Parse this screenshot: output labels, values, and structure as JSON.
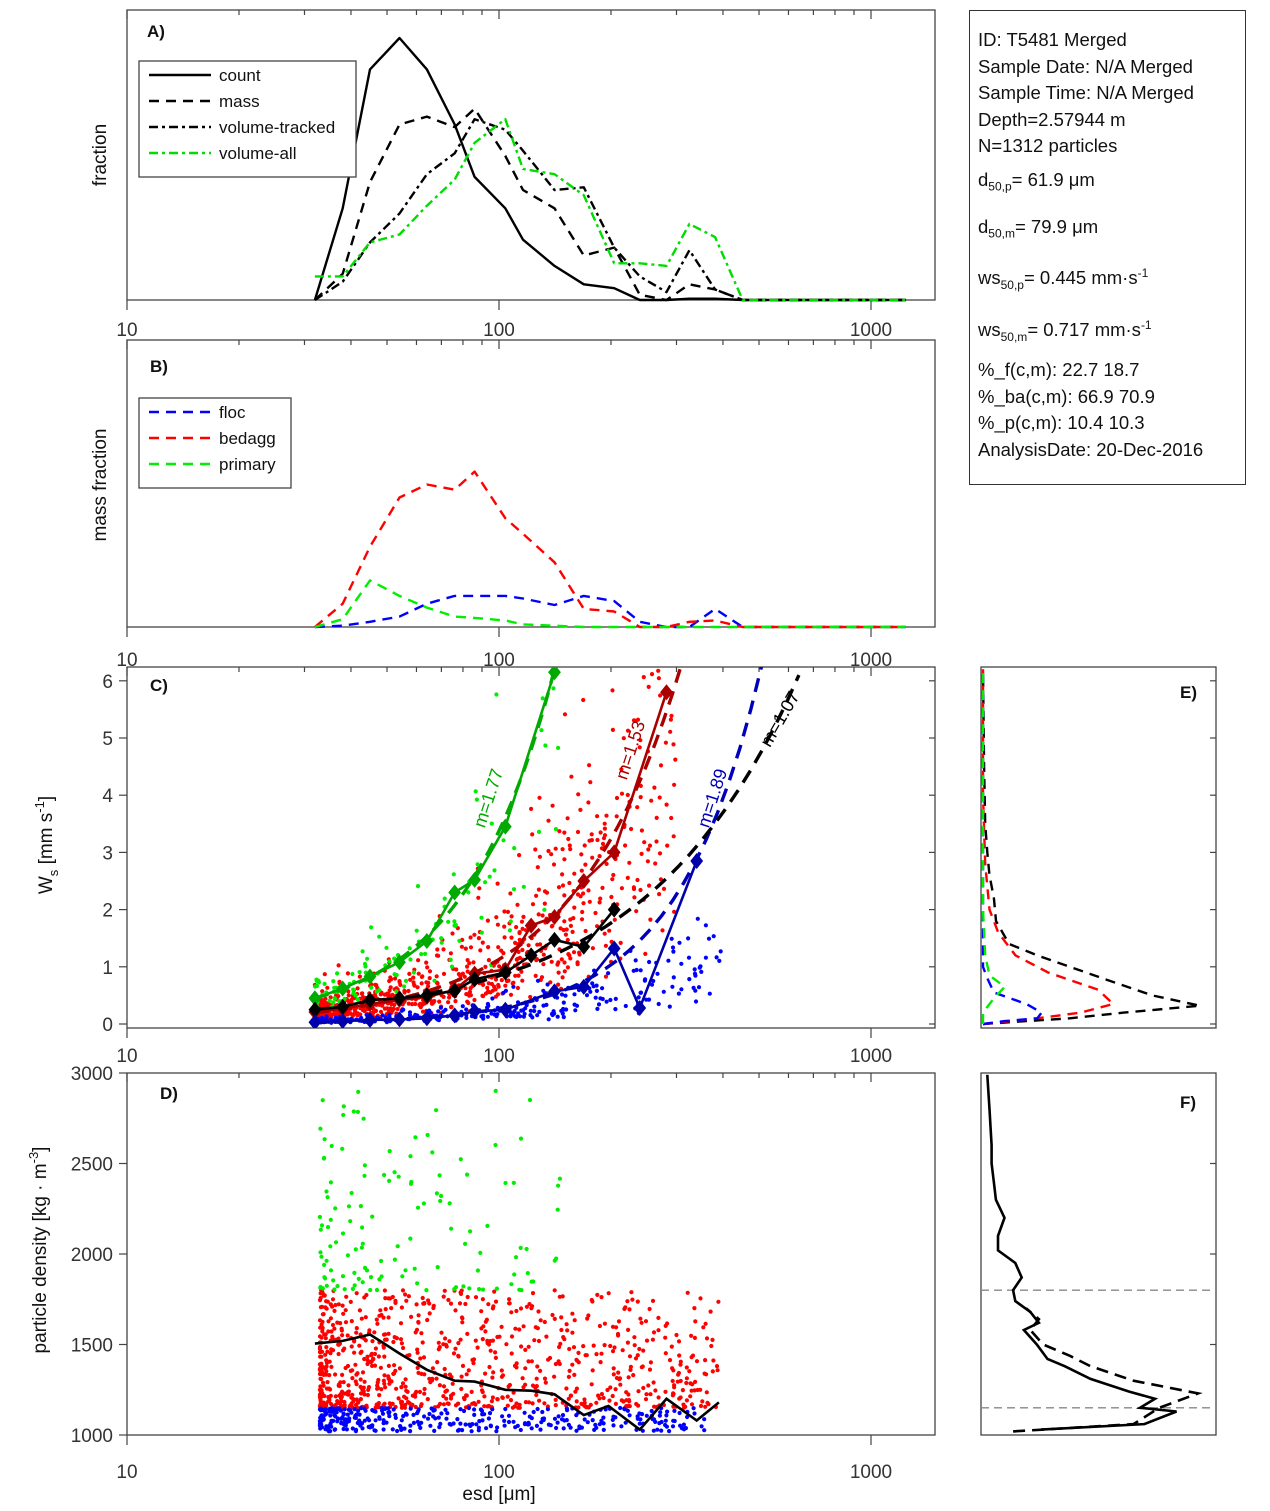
{
  "figure": {
    "info_box": {
      "lines": [
        {
          "text": "ID: T5481 Merged"
        },
        {
          "text": "Sample Date: N/A Merged"
        },
        {
          "text": "Sample Time: N/A Merged"
        },
        {
          "text": "Depth=2.57944 m"
        },
        {
          "text": "N=1312 particles"
        },
        {
          "pre": "d",
          "sub": "50,p",
          "post": "=  61.9 μm"
        },
        {
          "pre": "d",
          "sub": "50,m",
          "post": "=  79.9 μm"
        },
        {
          "pre": "ws",
          "sub": "50,p",
          "post": "= 0.445 mm·s",
          "sup": "-1"
        },
        {
          "pre": "ws",
          "sub": "50,m",
          "post": "= 0.717 mm·s",
          "sup": "-1"
        },
        {
          "text": "%_f(c,m): 22.7 18.7"
        },
        {
          "text": "%_ba(c,m): 66.9 70.9"
        },
        {
          "text": "%_p(c,m): 10.4 10.3"
        },
        {
          "text": "AnalysisDate: 20-Dec-2016"
        }
      ]
    }
  },
  "chart_data": [
    {
      "panel": "A",
      "panel_label": "A)",
      "type": "line",
      "xscale": "log",
      "xlim": [
        10,
        1500
      ],
      "xticks": [
        10,
        100,
        1000
      ],
      "xtick_labels": [
        "10",
        "100",
        "1000"
      ],
      "ylabel": "fraction",
      "ylim": [
        0,
        1
      ],
      "legend_position": "top-left",
      "x": [
        32,
        38,
        45,
        54,
        64,
        76,
        86,
        104,
        116,
        141,
        169,
        204,
        239,
        282,
        325,
        381,
        452,
        540,
        640,
        760,
        900,
        1060,
        1240
      ],
      "series": [
        {
          "name": "count",
          "style": "solid",
          "color": "#000000",
          "values": [
            0.0,
            0.35,
            0.88,
            1.0,
            0.88,
            0.67,
            0.47,
            0.35,
            0.23,
            0.13,
            0.06,
            0.045,
            0.0,
            0.0,
            0.005,
            0.005,
            0.0,
            0.0,
            0.0,
            0.0,
            0.0,
            0.0,
            0.0
          ]
        },
        {
          "name": "mass",
          "style": "dashed",
          "color": "#000000",
          "values": [
            0.0,
            0.1,
            0.45,
            0.67,
            0.7,
            0.66,
            0.73,
            0.55,
            0.42,
            0.35,
            0.17,
            0.2,
            0.02,
            0.0,
            0.06,
            0.04,
            0.0,
            0.0,
            0.0,
            0.0,
            0.0,
            0.0,
            0.0
          ]
        },
        {
          "name": "volume-tracked",
          "style": "dashdot",
          "color": "#000000",
          "values": [
            0.0,
            0.07,
            0.22,
            0.33,
            0.48,
            0.56,
            0.69,
            0.65,
            0.57,
            0.42,
            0.43,
            0.2,
            0.09,
            0.03,
            0.19,
            0.04,
            0.0,
            0.0,
            0.0,
            0.0,
            0.0,
            0.0,
            0.0
          ]
        },
        {
          "name": "volume-all",
          "style": "dashdot",
          "color": "#00dd00",
          "values": [
            0.09,
            0.09,
            0.22,
            0.25,
            0.36,
            0.46,
            0.6,
            0.69,
            0.5,
            0.48,
            0.4,
            0.14,
            0.14,
            0.13,
            0.29,
            0.24,
            0.0,
            0.0,
            0.0,
            0.0,
            0.0,
            0.0,
            0.0
          ]
        }
      ]
    },
    {
      "panel": "B",
      "panel_label": "B)",
      "type": "line",
      "xscale": "log",
      "xlim": [
        10,
        1500
      ],
      "xticks": [
        10,
        100,
        1000
      ],
      "xtick_labels": [
        "10",
        "100",
        "1000"
      ],
      "ylabel": "mass fraction",
      "ylim": [
        0,
        1
      ],
      "legend_position": "top-left",
      "x": [
        32,
        38,
        45,
        54,
        64,
        76,
        86,
        104,
        116,
        141,
        169,
        204,
        239,
        282,
        325,
        381,
        452,
        540,
        640,
        760,
        900,
        1060,
        1240
      ],
      "series": [
        {
          "name": "floc",
          "style": "dashed",
          "color": "#0000ff",
          "values": [
            0.0,
            0.005,
            0.02,
            0.04,
            0.09,
            0.12,
            0.12,
            0.12,
            0.11,
            0.085,
            0.12,
            0.1,
            0.02,
            0.0,
            0.0,
            0.07,
            0.0,
            0.0,
            0.0,
            0.0,
            0.0,
            0.0,
            0.0
          ]
        },
        {
          "name": "bedagg",
          "style": "dashed",
          "color": "#ff0000",
          "values": [
            0.0,
            0.09,
            0.31,
            0.5,
            0.55,
            0.53,
            0.6,
            0.42,
            0.36,
            0.25,
            0.07,
            0.06,
            0.0,
            0.0,
            0.02,
            0.025,
            0.0,
            0.0,
            0.0,
            0.0,
            0.0,
            0.0,
            0.0
          ]
        },
        {
          "name": "primary",
          "style": "dashed",
          "color": "#00ee00",
          "values": [
            0.0,
            0.03,
            0.18,
            0.12,
            0.075,
            0.04,
            0.035,
            0.025,
            0.01,
            0.005,
            0.0,
            0.0,
            0.0,
            0.0,
            0.0,
            0.0,
            0.0,
            0.0,
            0.0,
            0.0,
            0.0,
            0.0,
            0.0
          ]
        }
      ]
    },
    {
      "panel": "C",
      "panel_label": "C)",
      "type": "scatter",
      "xscale": "log",
      "xlim": [
        10,
        1500
      ],
      "xticks": [
        10,
        100,
        1000
      ],
      "xtick_labels": [
        "10",
        "100",
        "1000"
      ],
      "ylabel": "W_s [mm s^-1]",
      "ylim": [
        -0.1,
        6.3
      ],
      "yticks": [
        0,
        1,
        2,
        3,
        4,
        5,
        6
      ],
      "ytick_labels": [
        "0",
        "1",
        "2",
        "3",
        "4",
        "5",
        "6"
      ],
      "diamonds": [
        {
          "name": "primary-median",
          "color": "#00aa00",
          "x": [
            32,
            38,
            45,
            54,
            64,
            76,
            86,
            104,
            141
          ],
          "y": [
            0.45,
            0.62,
            0.83,
            1.08,
            1.45,
            2.3,
            2.52,
            3.45,
            6.15
          ]
        },
        {
          "name": "bedagg-median",
          "color": "#aa0000",
          "x": [
            32,
            38,
            45,
            54,
            64,
            76,
            86,
            104,
            122,
            141,
            169,
            204,
            282
          ],
          "y": [
            0.21,
            0.27,
            0.35,
            0.42,
            0.47,
            0.6,
            0.88,
            0.95,
            1.72,
            1.87,
            2.5,
            3.0,
            5.8
          ]
        },
        {
          "name": "all-median",
          "color": "#000000",
          "x": [
            32,
            38,
            45,
            54,
            64,
            76,
            86,
            104,
            122,
            141,
            169,
            204
          ],
          "y": [
            0.25,
            0.3,
            0.42,
            0.45,
            0.5,
            0.58,
            0.78,
            0.9,
            1.2,
            1.47,
            1.35,
            2.0
          ]
        },
        {
          "name": "floc-median",
          "color": "#0000aa",
          "x": [
            32,
            38,
            45,
            54,
            64,
            76,
            86,
            104,
            141,
            169,
            204,
            239,
            340
          ],
          "y": [
            0.03,
            0.05,
            0.07,
            0.08,
            0.1,
            0.15,
            0.22,
            0.25,
            0.57,
            0.65,
            1.32,
            0.28,
            2.85
          ]
        }
      ],
      "fits": [
        {
          "name": "primary-fit",
          "label": "m=1.77",
          "color": "#00aa00",
          "m": 1.77,
          "x_start": 32,
          "x_end": 141,
          "y_start": 0.45,
          "y_end": 6.2
        },
        {
          "name": "bedagg-fit",
          "label": "m=1.53",
          "color": "#aa0000",
          "m": 1.53,
          "x_start": 32,
          "x_end": 310,
          "y_start": 0.2,
          "y_end": 6.3
        },
        {
          "name": "floc-fit",
          "label": "m=1.89",
          "color": "#0000bb",
          "m": 1.89,
          "x_start": 32,
          "x_end": 510,
          "y_start": 0.03,
          "y_end": 6.3
        },
        {
          "name": "all-fit",
          "label": "m=1.07",
          "color": "#000000",
          "m": 1.07,
          "x_start": 32,
          "x_end": 640,
          "y_start": 0.25,
          "y_end": 6.1
        }
      ],
      "scatter_groups": [
        {
          "name": "primary",
          "color": "#00ee00",
          "x_range": [
            32,
            160
          ],
          "y_center": "fit",
          "count": 120
        },
        {
          "name": "bedagg",
          "color": "#ff0000",
          "x_range": [
            32,
            300
          ],
          "count": 850
        },
        {
          "name": "floc",
          "color": "#0000ff",
          "x_range": [
            32,
            400
          ],
          "count": 340
        }
      ]
    },
    {
      "panel": "D",
      "panel_label": "D)",
      "type": "scatter",
      "xscale": "log",
      "xlim": [
        10,
        1500
      ],
      "xticks": [
        10,
        100,
        1000
      ],
      "xtick_labels": [
        "10",
        "100",
        "1000"
      ],
      "xlabel": "esd [μm]",
      "ylabel": "particle density [kg · m^-3]",
      "ylim": [
        1000,
        3000
      ],
      "yticks": [
        1000,
        1500,
        2000,
        2500,
        3000
      ],
      "ytick_labels": [
        "1000",
        "1500",
        "2000",
        "2500",
        "3000"
      ],
      "median_line": {
        "name": "median-density",
        "color": "#000000",
        "x": [
          32,
          38,
          45,
          54,
          64,
          76,
          86,
          104,
          122,
          141,
          169,
          197,
          239,
          282,
          340,
          390
        ],
        "y": [
          1505,
          1520,
          1555,
          1450,
          1360,
          1300,
          1295,
          1250,
          1245,
          1225,
          1110,
          1160,
          1030,
          1200,
          1080,
          1180
        ]
      },
      "scatter_groups": [
        {
          "name": "primary",
          "color": "#00ee00",
          "x_range": [
            33,
            150
          ],
          "y_range": [
            1800,
            2920
          ],
          "count": 130
        },
        {
          "name": "bedagg",
          "color": "#ff0000",
          "x_range": [
            33,
            390
          ],
          "y_range": [
            1150,
            1800
          ],
          "count": 850
        },
        {
          "name": "floc",
          "color": "#0000ff",
          "x_range": [
            33,
            370
          ],
          "y_range": [
            1020,
            1150
          ],
          "count": 340
        }
      ]
    },
    {
      "panel": "E",
      "panel_label": "E)",
      "type": "line",
      "orientation": "horizontal-distribution",
      "ylim": [
        -0.1,
        6.3
      ],
      "series": [
        {
          "name": "all",
          "style": "dashed",
          "color": "#000000",
          "y": [
            0.0,
            0.05,
            0.1,
            0.2,
            0.32,
            0.5,
            0.8,
            1.0,
            1.2,
            1.4,
            1.8,
            2.2,
            2.6,
            3.0,
            3.5,
            4.5,
            6.2
          ],
          "values": [
            0.0,
            0.2,
            0.4,
            0.65,
            1.0,
            0.78,
            0.55,
            0.4,
            0.25,
            0.12,
            0.06,
            0.05,
            0.03,
            0.02,
            0.01,
            0.005,
            0.0
          ]
        },
        {
          "name": "bedagg",
          "style": "dashed",
          "color": "#ff0000",
          "y": [
            0.0,
            0.1,
            0.2,
            0.35,
            0.6,
            0.9,
            1.2,
            1.6,
            2.0,
            2.8,
            4.0,
            6.2
          ],
          "values": [
            0.0,
            0.25,
            0.45,
            0.6,
            0.53,
            0.3,
            0.15,
            0.07,
            0.03,
            0.01,
            0.0,
            0.0
          ]
        },
        {
          "name": "floc",
          "style": "dashed",
          "color": "#0000ff",
          "y": [
            0.0,
            0.05,
            0.1,
            0.2,
            0.35,
            0.55,
            0.8,
            1.0,
            1.5,
            3.0,
            6.2
          ],
          "values": [
            0.0,
            0.1,
            0.25,
            0.27,
            0.2,
            0.05,
            0.02,
            0.0,
            0.0,
            0.0,
            0.0
          ]
        },
        {
          "name": "primary",
          "style": "dashed",
          "color": "#00ee00",
          "y": [
            0.0,
            0.2,
            0.45,
            0.65,
            0.85,
            1.2,
            2.0,
            4.0,
            6.2
          ],
          "values": [
            0.0,
            0.0,
            0.05,
            0.1,
            0.03,
            0.01,
            0.0,
            0.0,
            0.0
          ]
        }
      ]
    },
    {
      "panel": "F",
      "panel_label": "F)",
      "type": "line",
      "orientation": "horizontal-distribution",
      "ylim": [
        1000,
        3000
      ],
      "reference_lines": [
        1800,
        1150
      ],
      "series": [
        {
          "name": "count",
          "style": "solid",
          "color": "#000000",
          "y": [
            1030,
            1060,
            1130,
            1150,
            1200,
            1240,
            1310,
            1380,
            1420,
            1500,
            1580,
            1620,
            1680,
            1740,
            1800,
            1870,
            1950,
            2020,
            2100,
            2200,
            2300,
            2400,
            2500,
            2600,
            2800,
            2990
          ],
          "values": [
            0.27,
            0.75,
            0.9,
            0.73,
            0.8,
            0.68,
            0.5,
            0.38,
            0.3,
            0.25,
            0.19,
            0.26,
            0.22,
            0.15,
            0.14,
            0.18,
            0.15,
            0.07,
            0.07,
            0.1,
            0.06,
            0.05,
            0.04,
            0.04,
            0.03,
            0.02
          ]
        },
        {
          "name": "mass",
          "style": "dashed",
          "color": "#000000",
          "y": [
            1020,
            1060,
            1150,
            1230,
            1300,
            1380,
            1440,
            1500,
            1580,
            1640,
            1700
          ],
          "values": [
            0.14,
            0.7,
            0.82,
            1.0,
            0.7,
            0.5,
            0.4,
            0.28,
            0.22,
            0.26,
            0.2
          ]
        }
      ]
    }
  ]
}
